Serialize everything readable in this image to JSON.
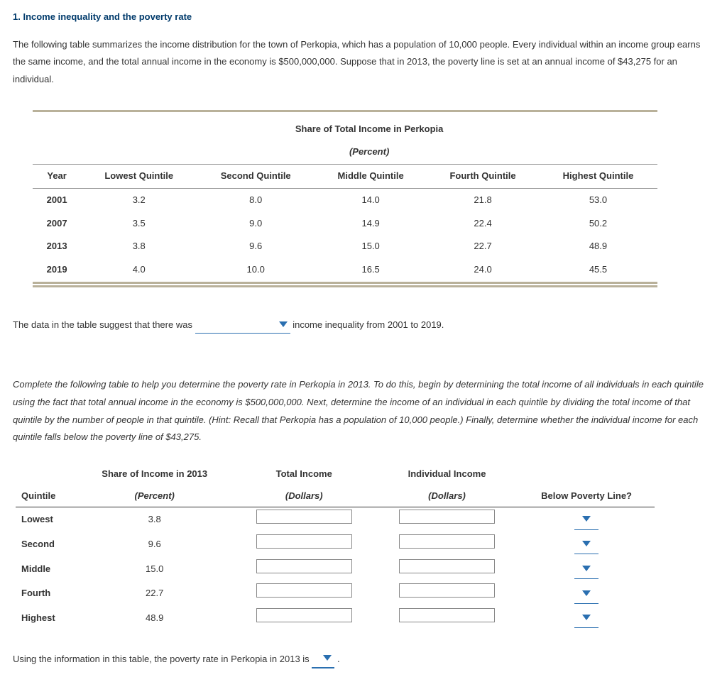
{
  "title": "1. Income inequality and the poverty rate",
  "intro": "The following table summarizes the income distribution for the town of Perkopia, which has a population of 10,000 people. Every individual within an income group earns the same income, and the total annual income in the economy is $500,000,000. Suppose that in 2013, the poverty line is set at an annual income of $43,275 for an individual.",
  "table1": {
    "superheader": "Share of Total Income in Perkopia",
    "superunit": "(Percent)",
    "columns": [
      "Year",
      "Lowest Quintile",
      "Second Quintile",
      "Middle Quintile",
      "Fourth Quintile",
      "Highest Quintile"
    ],
    "rows": [
      [
        "2001",
        "3.2",
        "8.0",
        "14.0",
        "21.8",
        "53.0"
      ],
      [
        "2007",
        "3.5",
        "9.0",
        "14.9",
        "22.4",
        "50.2"
      ],
      [
        "2013",
        "3.8",
        "9.6",
        "15.0",
        "22.7",
        "48.9"
      ],
      [
        "2019",
        "4.0",
        "10.0",
        "16.5",
        "24.0",
        "45.5"
      ]
    ]
  },
  "sentence1_a": "The data in the table suggest that there was",
  "sentence1_b": "income inequality from 2001 to 2019.",
  "instructions": "Complete the following table to help you determine the poverty rate in Perkopia in 2013. To do this, begin by determining the total income of all individuals in each quintile using the fact that total annual income in the economy is $500,000,000. Next, determine the income of an individual in each quintile by dividing the total income of that quintile by the number of people in that quintile. (Hint: Recall that Perkopia has a population of 10,000 people.) Finally, determine whether the individual income for each quintile falls below the poverty line of $43,275.",
  "table2": {
    "headers": {
      "quintile": "Quintile",
      "share": "Share of Income in 2013",
      "share_unit": "(Percent)",
      "total": "Total Income",
      "total_unit": "(Dollars)",
      "indiv": "Individual Income",
      "indiv_unit": "(Dollars)",
      "below": "Below Poverty Line?"
    },
    "rows": [
      {
        "q": "Lowest",
        "share": "3.8"
      },
      {
        "q": "Second",
        "share": "9.6"
      },
      {
        "q": "Middle",
        "share": "15.0"
      },
      {
        "q": "Fourth",
        "share": "22.7"
      },
      {
        "q": "Highest",
        "share": "48.9"
      }
    ]
  },
  "final_a": "Using the information in this table, the poverty rate in Perkopia in 2013 is",
  "final_b": "."
}
